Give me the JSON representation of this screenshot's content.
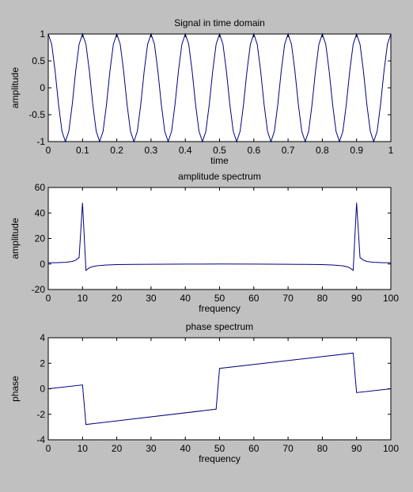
{
  "colors": {
    "figure_bg": "#c0c0c0",
    "axes_bg": "#ffffff",
    "line": "#00007f",
    "axis": "#000000"
  },
  "chart_data": [
    {
      "type": "line",
      "title": "Signal in time domain",
      "xlabel": "time",
      "ylabel": "amplitude",
      "xlim": [
        0,
        1
      ],
      "ylim": [
        -1,
        1
      ],
      "xticks": [
        0,
        0.1,
        0.2,
        0.3,
        0.4,
        0.5,
        0.6,
        0.7,
        0.8,
        0.9,
        1
      ],
      "xtick_labels": [
        "0",
        "0.1",
        "0.2",
        "0.3",
        "0.4",
        "0.5",
        "0.6",
        "0.7",
        "0.8",
        "0.9",
        "1"
      ],
      "yticks": [
        -1,
        -0.5,
        0,
        0.5,
        1
      ],
      "ytick_labels": [
        "-1",
        "-0.5",
        "0",
        "0.5",
        "1"
      ],
      "grid": false,
      "series": [
        {
          "function": "cos(2*pi*10*t)",
          "sample_count": 101,
          "x_range": [
            0,
            1
          ]
        }
      ]
    },
    {
      "type": "line",
      "title": "amplitude spectrum",
      "xlabel": "frequency",
      "ylabel": "amplitude",
      "xlim": [
        0,
        100
      ],
      "ylim": [
        -20,
        60
      ],
      "xticks": [
        0,
        10,
        20,
        30,
        40,
        50,
        60,
        70,
        80,
        90,
        100
      ],
      "xtick_labels": [
        "0",
        "10",
        "20",
        "30",
        "40",
        "50",
        "60",
        "70",
        "80",
        "90",
        "100"
      ],
      "yticks": [
        -20,
        0,
        20,
        40,
        60
      ],
      "ytick_labels": [
        "-20",
        "0",
        "20",
        "40",
        "60"
      ],
      "grid": false,
      "series": [
        {
          "x": [
            0,
            1,
            2,
            3,
            4,
            5,
            6,
            7,
            8,
            9,
            10,
            11,
            12,
            13,
            14,
            15,
            16,
            17,
            18,
            20,
            25,
            30,
            40,
            50,
            60,
            70,
            75,
            80,
            82,
            83,
            84,
            85,
            86,
            87,
            88,
            89,
            90,
            91,
            92,
            93,
            94,
            95,
            96,
            97,
            98,
            99,
            100
          ],
          "y": [
            1,
            1,
            1,
            1.1,
            1.2,
            1.3,
            1.6,
            2,
            3,
            5,
            48,
            -5,
            -3,
            -2,
            -1.5,
            -1.2,
            -1,
            -0.8,
            -0.7,
            -0.5,
            -0.3,
            -0.2,
            -0.1,
            0,
            -0.1,
            -0.2,
            -0.3,
            -0.5,
            -0.7,
            -0.8,
            -1,
            -1.2,
            -1.5,
            -2,
            -3,
            -5,
            48,
            5,
            3,
            2,
            1.6,
            1.3,
            1.2,
            1.1,
            1,
            1,
            1
          ]
        }
      ]
    },
    {
      "type": "line",
      "title": "phase spectrum",
      "xlabel": "frequency",
      "ylabel": "phase",
      "xlim": [
        0,
        100
      ],
      "ylim": [
        -4,
        4
      ],
      "xticks": [
        0,
        10,
        20,
        30,
        40,
        50,
        60,
        70,
        80,
        90,
        100
      ],
      "xtick_labels": [
        "0",
        "10",
        "20",
        "30",
        "40",
        "50",
        "60",
        "70",
        "80",
        "90",
        "100"
      ],
      "yticks": [
        -4,
        -2,
        0,
        2,
        4
      ],
      "ytick_labels": [
        "-4",
        "-2",
        "0",
        "2",
        "4"
      ],
      "grid": false,
      "series": [
        {
          "x": [
            0,
            10,
            11,
            49,
            50,
            89,
            90,
            100
          ],
          "y": [
            0,
            0.3,
            -2.8,
            -1.6,
            1.6,
            2.8,
            -0.3,
            0
          ]
        }
      ]
    }
  ]
}
